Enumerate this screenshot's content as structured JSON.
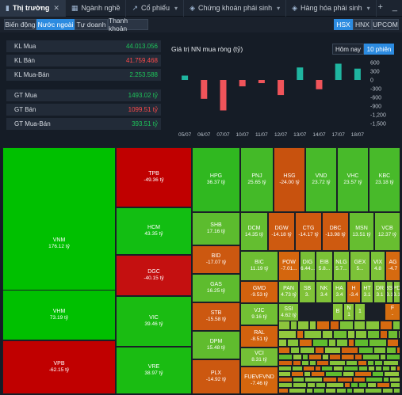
{
  "tabs": [
    {
      "label": "Thị trường",
      "icon": "chart-icon",
      "active": true
    },
    {
      "label": "Ngành nghề",
      "icon": "grid-icon"
    },
    {
      "label": "Cổ phiếu",
      "icon": "stock-icon"
    },
    {
      "label": "Chứng khoán phái sinh",
      "icon": "derivative-icon"
    },
    {
      "label": "Hàng hóa phái sinh",
      "icon": "commodity-icon"
    }
  ],
  "tabbar_actions": {
    "add": "+",
    "minimize": "_"
  },
  "subtabs": [
    {
      "label": "Biến động"
    },
    {
      "label": "Nước ngoài",
      "active": true
    },
    {
      "label": "Tự doanh"
    },
    {
      "label": "Thanh khoản"
    }
  ],
  "exchanges": [
    {
      "label": "HSX",
      "active": true
    },
    {
      "label": "HNX"
    },
    {
      "label": "UPCOM"
    }
  ],
  "summary": [
    {
      "label": "KL Mua",
      "value": "44.013.056",
      "color": "green"
    },
    {
      "label": "KL Bán",
      "value": "41.759.468",
      "color": "red"
    },
    {
      "label": "KL Mua-Bán",
      "value": "2.253.588",
      "color": "green"
    },
    {
      "label": "GT Mua",
      "value": "1493.02 tỷ",
      "color": "green"
    },
    {
      "label": "GT Bán",
      "value": "1099.51 tỷ",
      "color": "red"
    },
    {
      "label": "GT Mua-Bán",
      "value": "393.51 tỷ",
      "color": "green"
    }
  ],
  "chart_controls": {
    "today": "Hôm nay",
    "sessions": "10 phiên"
  },
  "chart_data": {
    "type": "bar",
    "title": "Giá trị NN mua ròng (tỷ)",
    "categories": [
      "05/07",
      "06/07",
      "07/07",
      "10/07",
      "11/07",
      "12/07",
      "13/07",
      "14/07",
      "17/07",
      "18/07"
    ],
    "values": [
      150,
      -650,
      -1050,
      -220,
      -110,
      -520,
      430,
      -320,
      560,
      390
    ],
    "yticks": [
      "600",
      "300",
      "0",
      "-300",
      "-600",
      "-900",
      "-1,200",
      "-1,500"
    ],
    "ylim": [
      -1500,
      600
    ],
    "colors": {
      "positive": "#1fb5a0",
      "negative": "#f0545a"
    }
  },
  "heatmap": [
    {
      "sym": "VNM",
      "val": "176.12 tỷ",
      "color": "#00c000"
    },
    {
      "sym": "VHM",
      "val": "73.19 tỷ",
      "color": "#00c000"
    },
    {
      "sym": "VPB",
      "val": "-62.15 tỷ",
      "color": "#c00000"
    },
    {
      "sym": "TPB",
      "val": "-49.36 tỷ",
      "color": "#c00000"
    },
    {
      "sym": "HCM",
      "val": "43.35 tỷ",
      "color": "#12be12"
    },
    {
      "sym": "DGC",
      "val": "-40.15 tỷ",
      "color": "#c41010"
    },
    {
      "sym": "VIC",
      "val": "39.46 tỷ",
      "color": "#1abc12"
    },
    {
      "sym": "VRE",
      "val": "38.97 tỷ",
      "color": "#1abc12"
    },
    {
      "sym": "HPG",
      "val": "36.37 tỷ",
      "color": "#30b820"
    },
    {
      "sym": "PNJ",
      "val": "25.65 tỷ",
      "color": "#44ba28"
    },
    {
      "sym": "HSG",
      "val": "-24.00 tỷ",
      "color": "#c8520e"
    },
    {
      "sym": "VND",
      "val": "23.72 tỷ",
      "color": "#48ba2a"
    },
    {
      "sym": "VHC",
      "val": "23.57 tỷ",
      "color": "#48ba2a"
    },
    {
      "sym": "KBC",
      "val": "23.18 tỷ",
      "color": "#48ba2a"
    },
    {
      "sym": "SHB",
      "val": "17.16 tỷ",
      "color": "#5cbc2e"
    },
    {
      "sym": "DCM",
      "val": "14.35 tỷ",
      "color": "#64be30"
    },
    {
      "sym": "DGW",
      "val": "-14.18 tỷ",
      "color": "#ce5a10"
    },
    {
      "sym": "CTG",
      "val": "-14.17 tỷ",
      "color": "#ce5a10"
    },
    {
      "sym": "DBC",
      "val": "-13.98 tỷ",
      "color": "#ce5a10"
    },
    {
      "sym": "MSN",
      "val": "13.51 tỷ",
      "color": "#66be30"
    },
    {
      "sym": "VCB",
      "val": "12.37 tỷ",
      "color": "#68be30"
    },
    {
      "sym": "BID",
      "val": "-17.07 tỷ",
      "color": "#cc5810"
    },
    {
      "sym": "GAS",
      "val": "16.25 tỷ",
      "color": "#5ebc2e"
    },
    {
      "sym": "STB",
      "val": "-15.58 tỷ",
      "color": "#cc5810"
    },
    {
      "sym": "DPM",
      "val": "15.48 tỷ",
      "color": "#60bc2e"
    },
    {
      "sym": "PLX",
      "val": "-14.92 tỷ",
      "color": "#cc5810"
    },
    {
      "sym": "BIC",
      "val": "11.19 tỷ",
      "color": "#6ebe32"
    },
    {
      "sym": "GMD",
      "val": "-9.53 tỷ",
      "color": "#d2620e"
    },
    {
      "sym": "VJC",
      "val": "9.16 tỷ",
      "color": "#72c034"
    },
    {
      "sym": "RAL",
      "val": "-8.51 tỷ",
      "color": "#d2620e"
    },
    {
      "sym": "VCI",
      "val": "8.31 tỷ",
      "color": "#74c036"
    },
    {
      "sym": "FUEVFVND",
      "val": "-7.46 tỷ",
      "color": "#d4660e"
    },
    {
      "sym": "POW",
      "val": "-7.01...",
      "color": "#d4660e"
    },
    {
      "sym": "DIG",
      "val": "6.44...",
      "color": "#78c036"
    },
    {
      "sym": "EIB",
      "val": "5.8...",
      "color": "#7ac236"
    },
    {
      "sym": "NLG",
      "val": "5.7...",
      "color": "#7ac236"
    },
    {
      "sym": "GEX",
      "val": "5...",
      "color": "#7cc238"
    },
    {
      "sym": "VIX",
      "val": "4.8",
      "color": "#7cc238"
    },
    {
      "sym": "AG",
      "val": "-4.7",
      "color": "#d66a10"
    },
    {
      "sym": "PAN",
      "val": "4.73 tỷ",
      "color": "#7cc238"
    },
    {
      "sym": "SB",
      "val": "3.",
      "color": "#80c238"
    },
    {
      "sym": "NK",
      "val": "3.4",
      "color": "#80c238"
    },
    {
      "sym": "HA",
      "val": "3.4",
      "color": "#80c238"
    },
    {
      "sym": "H",
      "val": "-3.4",
      "color": "#d66a10"
    },
    {
      "sym": "HT",
      "val": "3.1",
      "color": "#82c23a"
    },
    {
      "sym": "DR",
      "val": "3.1",
      "color": "#82c23a"
    },
    {
      "sym": "BSI",
      "val": "3.1",
      "color": "#82c23a"
    },
    {
      "sym": "PD",
      "val": "3.1",
      "color": "#82c23a"
    },
    {
      "sym": "SSI",
      "val": "4.62 tỷ",
      "color": "#7cc238"
    },
    {
      "sym": "B",
      "val": "",
      "color": "#86c43a"
    },
    {
      "sym": "N",
      "val": "1",
      "color": "#86c43a"
    },
    {
      "sym": "1",
      "val": "",
      "color": "#86c43a"
    },
    {
      "sym": "F",
      "val": "-",
      "color": "#d66e10"
    }
  ]
}
